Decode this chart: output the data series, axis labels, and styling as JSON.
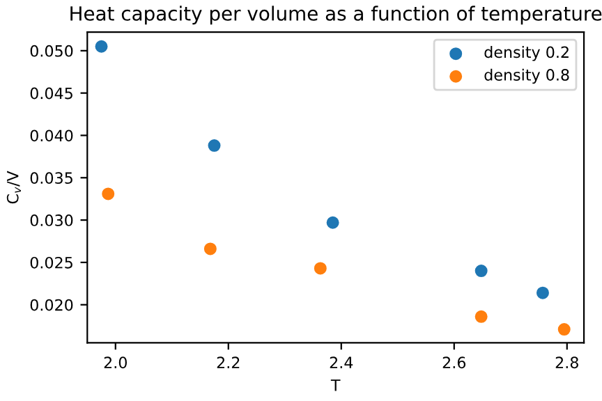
{
  "chart_data": {
    "type": "scatter",
    "title": "Heat capacity per volume as a function of temperature",
    "xlabel": "T",
    "ylabel": "C$_{v}$/V",
    "series": [
      {
        "name": "density 0.2",
        "color": "#1f77b4",
        "x": [
          1.975,
          2.175,
          2.385,
          2.648,
          2.757
        ],
        "values": [
          0.0505,
          0.0388,
          0.0297,
          0.024,
          0.0214
        ]
      },
      {
        "name": "density 0.8",
        "color": "#ff7f0e",
        "x": [
          1.987,
          2.168,
          2.363,
          2.648,
          2.795
        ],
        "values": [
          0.0331,
          0.0266,
          0.0243,
          0.0186,
          0.0171
        ]
      }
    ],
    "xlim": [
      1.95,
      2.83
    ],
    "ylim": [
      0.0155,
      0.0522
    ],
    "xticks": [
      {
        "value": 2.0,
        "label": "2.0"
      },
      {
        "value": 2.2,
        "label": "2.2"
      },
      {
        "value": 2.4,
        "label": "2.4"
      },
      {
        "value": 2.6,
        "label": "2.6"
      },
      {
        "value": 2.8,
        "label": "2.8"
      }
    ],
    "yticks": [
      {
        "value": 0.02,
        "label": "0.020"
      },
      {
        "value": 0.025,
        "label": "0.025"
      },
      {
        "value": 0.03,
        "label": "0.030"
      },
      {
        "value": 0.035,
        "label": "0.035"
      },
      {
        "value": 0.04,
        "label": "0.040"
      },
      {
        "value": 0.045,
        "label": "0.045"
      },
      {
        "value": 0.05,
        "label": "0.050"
      }
    ],
    "marker": "circle",
    "legend": "top right",
    "grid": false
  }
}
